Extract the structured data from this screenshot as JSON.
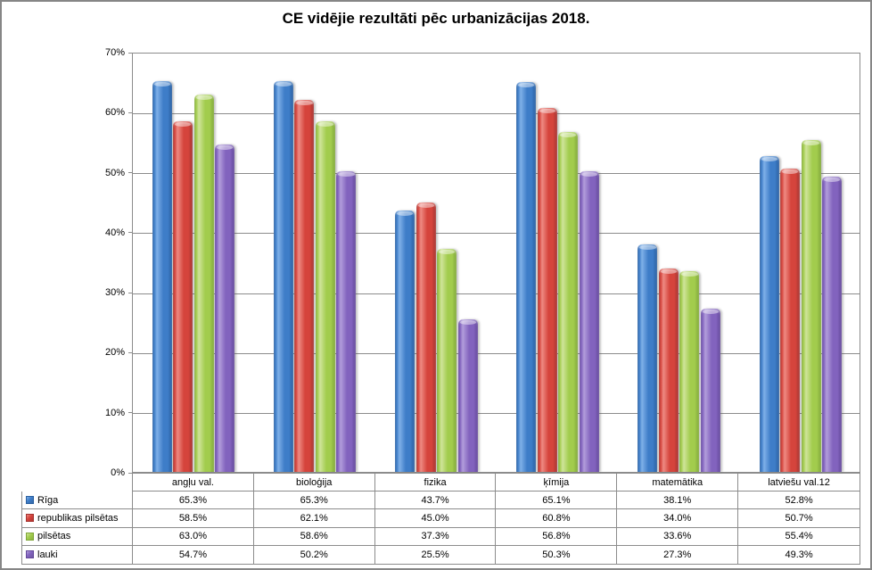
{
  "chart_data": {
    "type": "bar",
    "title": "CE vidējie rezultāti pēc urbanizācijas 2018.",
    "categories": [
      "angļu val.",
      "bioloģija",
      "fizika",
      "ķīmija",
      "matemātika",
      "latviešu val.12"
    ],
    "series": [
      {
        "name": "Rīga",
        "color": "#3E7DC8",
        "color_light": "#7FB0E8",
        "color_dark": "#2A5F9F",
        "key_color": "#3569A8",
        "values": [
          65.3,
          65.3,
          43.7,
          65.1,
          38.1,
          52.8
        ]
      },
      {
        "name": "republikas pilsētas",
        "color": "#D5443C",
        "color_light": "#EE8A83",
        "color_dark": "#A33431",
        "key_color": "#B03430",
        "values": [
          58.5,
          62.1,
          45.0,
          60.8,
          34.0,
          50.7
        ]
      },
      {
        "name": "pilsētas",
        "color": "#A2CC4D",
        "color_light": "#CFE49A",
        "color_dark": "#7FA639",
        "key_color": "#8CB23F",
        "values": [
          63.0,
          58.6,
          37.3,
          56.8,
          33.6,
          55.4
        ]
      },
      {
        "name": "lauki",
        "color": "#8263BE",
        "color_light": "#B29DDB",
        "color_dark": "#63489A",
        "key_color": "#6F58A0",
        "values": [
          54.7,
          50.2,
          25.5,
          50.3,
          27.3,
          49.3
        ]
      }
    ],
    "ylim": [
      0,
      70
    ],
    "ytick_step": 10,
    "ytick_suffix": "%",
    "value_suffix": "%",
    "value_decimals": 1,
    "grid": true,
    "legend_position": "data-table-left",
    "gridline_color": "#8c8c8c"
  }
}
